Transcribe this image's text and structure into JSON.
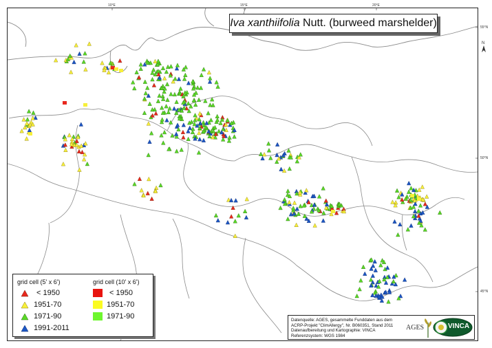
{
  "title": {
    "species": "Iva xanthiifolia",
    "rest": " Nutt. (burweed marshelder)"
  },
  "graticule": {
    "lon_labels": [
      "10°E",
      "15°E",
      "20°E"
    ],
    "lat_labels": [
      "55°N",
      "50°N",
      "45°N"
    ]
  },
  "north_arrow": "N",
  "legend": {
    "col1_header": "grid cell (5' x 6')",
    "col2_header": "grid cell (10' x 6')",
    "col1": [
      {
        "label": "< 1950",
        "color": "#e8281e"
      },
      {
        "label": "1951-70",
        "color": "#f7f03a"
      },
      {
        "label": "1971-90",
        "color": "#5ad926"
      },
      {
        "label": "1991-2011",
        "color": "#1d57c4"
      }
    ],
    "col2": [
      {
        "label": "< 1950",
        "color": "#e8140f"
      },
      {
        "label": "1951-70",
        "color": "#fbfb22"
      },
      {
        "label": "1971-90",
        "color": "#6ef62e"
      }
    ]
  },
  "credits": {
    "lines": [
      "Datenquelle: AGES, gesammelte Funddaten aus dem",
      "ACRP-Projekt \"ClimAllergy\", Nr. B060351, Stand 2011",
      "Datenaufbereitung und Kartographie: VINCA",
      "Referenzsystem: WGS 1984"
    ],
    "logo_ages": "AGES",
    "logo_vinca": "VINCA"
  },
  "colors": {
    "red": "#e8281e",
    "yellow": "#f7f03a",
    "green": "#5ad926",
    "blue": "#1d57c4",
    "border": "#8a8a8a"
  }
}
